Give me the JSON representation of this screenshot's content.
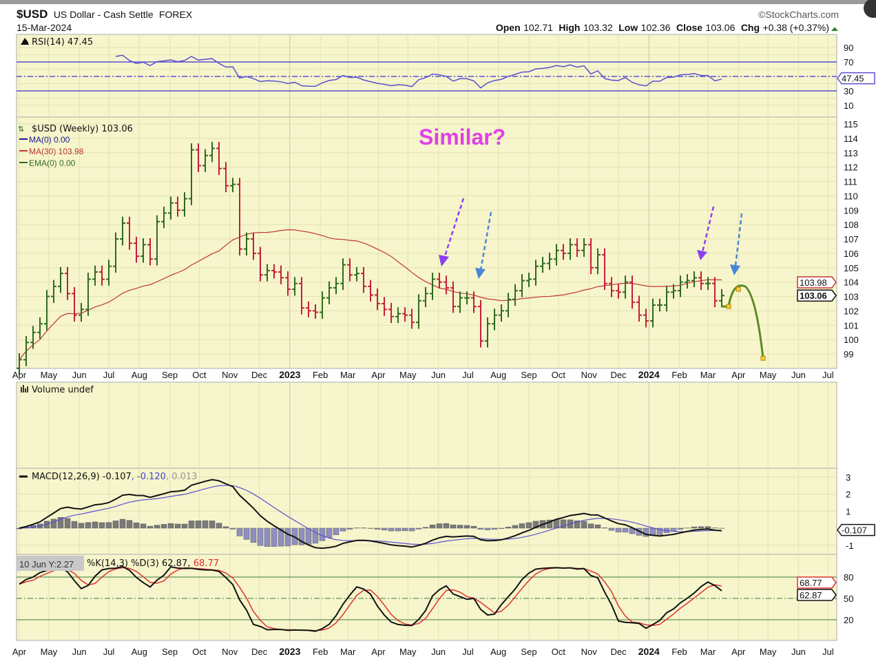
{
  "header": {
    "symbol": "$USD",
    "name": "US Dollar - Cash Settle",
    "exchange": "FOREX",
    "date": "15-Mar-2024",
    "brand": "©StockCharts.com",
    "open_label": "Open",
    "open": "102.71",
    "high_label": "High",
    "high": "103.32",
    "low_label": "Low",
    "low": "102.36",
    "close_label": "Close",
    "close": "103.06",
    "chg_label": "Chg",
    "chg": "+0.38 (+0.37%)"
  },
  "rsi": {
    "legend": "RSI(14) 47.45",
    "tag": "47.45",
    "ticks": [
      "90",
      "70",
      "30",
      "10"
    ]
  },
  "price": {
    "legend": "$USD (Weekly) 103.06",
    "ma0": "MA(0) 0.00",
    "ma30": "MA(30) 103.98",
    "ema0": "EMA(0) 0.00",
    "ma30_tag": "103.98",
    "close_tag": "103.06",
    "annotation": "Similar?",
    "ticks": [
      "115",
      "114",
      "113",
      "112",
      "111",
      "110",
      "109",
      "108",
      "107",
      "106",
      "105",
      "104",
      "103",
      "102",
      "101",
      "100",
      "99"
    ]
  },
  "volume": {
    "legend": "Volume undef"
  },
  "macd": {
    "legend_a": "MACD(12,26,9) -0.107",
    "legend_b": ", -0.120",
    "legend_c": ", 0.013",
    "tag": "-0.107",
    "ticks": [
      "3",
      "2",
      "1",
      "-1"
    ]
  },
  "stoch": {
    "crosshair": "10 Jun Y:2.27",
    "legend_a": "%K(14,3) %D(3) 62.87,",
    "legend_b": "68.77",
    "tag_k": "62.87",
    "tag_d": "68.77",
    "ticks": [
      "80",
      "50",
      "20"
    ]
  },
  "x_axis": [
    {
      "label": "Apr",
      "date": "2022-04-01"
    },
    {
      "label": "May",
      "date": "2022-05-01"
    },
    {
      "label": "Jun",
      "date": "2022-06-01"
    },
    {
      "label": "Jul",
      "date": "2022-07-01"
    },
    {
      "label": "Aug",
      "date": "2022-08-01"
    },
    {
      "label": "Sep",
      "date": "2022-09-01"
    },
    {
      "label": "Oct",
      "date": "2022-10-01"
    },
    {
      "label": "Nov",
      "date": "2022-11-01"
    },
    {
      "label": "Dec",
      "date": "2022-12-01"
    },
    {
      "label": "2023",
      "date": "2023-01-01",
      "bold": true
    },
    {
      "label": "Feb",
      "date": "2023-02-01"
    },
    {
      "label": "Mar",
      "date": "2023-03-01"
    },
    {
      "label": "Apr",
      "date": "2023-04-01"
    },
    {
      "label": "May",
      "date": "2023-05-01"
    },
    {
      "label": "Jun",
      "date": "2023-06-01"
    },
    {
      "label": "Jul",
      "date": "2023-07-01"
    },
    {
      "label": "Aug",
      "date": "2023-08-01"
    },
    {
      "label": "Sep",
      "date": "2023-09-01"
    },
    {
      "label": "Oct",
      "date": "2023-10-01"
    },
    {
      "label": "Nov",
      "date": "2023-11-01"
    },
    {
      "label": "Dec",
      "date": "2023-12-01"
    },
    {
      "label": "2024",
      "date": "2024-01-01",
      "bold": true
    },
    {
      "label": "Feb",
      "date": "2024-02-01"
    },
    {
      "label": "Mar",
      "date": "2024-03-01"
    },
    {
      "label": "Apr",
      "date": "2024-04-01"
    },
    {
      "label": "May",
      "date": "2024-05-01"
    },
    {
      "label": "Jun",
      "date": "2024-06-01"
    },
    {
      "label": "Jul",
      "date": "2024-07-01"
    }
  ],
  "colors": {
    "panel": "#f6f5cc",
    "up": "#2f6a1f",
    "down": "#c41f3a",
    "ma30": "#c03535",
    "rsi": "#5a4fd0",
    "macd": "#111111",
    "signal": "#5a4fd0",
    "hist_pos": "#7a7a7a",
    "hist_neg": "#8f8fc0",
    "stoch_k": "#111111",
    "stoch_d": "#e03030",
    "annotation": "#e040e8",
    "arrow_purple": "#8a3ff0",
    "arrow_blue": "#4a86d8",
    "projection": "#5a8a20"
  },
  "chart_data": {
    "type": "bar",
    "subtype": "weekly OHLC price bars with MA(30), RSI(14), MACD(12,26,9), Stochastic %K(14,3) %D(3)",
    "start_week": "2022-04-01",
    "interval": "weekly",
    "ylim": [
      99,
      115
    ],
    "close": [
      98.6,
      99.8,
      100.5,
      101.1,
      103.0,
      103.7,
      104.6,
      103.2,
      101.7,
      102.1,
      104.2,
      104.7,
      104.2,
      105.1,
      107.0,
      108.1,
      106.7,
      105.8,
      106.6,
      105.6,
      108.2,
      108.8,
      109.5,
      109.0,
      109.8,
      113.2,
      112.1,
      112.8,
      113.3,
      111.9,
      110.7,
      110.8,
      106.3,
      107.0,
      106.0,
      104.5,
      104.8,
      104.7,
      104.3,
      103.5,
      103.9,
      102.2,
      102.0,
      101.9,
      102.9,
      103.6,
      103.9,
      105.2,
      104.5,
      104.6,
      103.7,
      103.1,
      102.5,
      102.1,
      101.6,
      101.8,
      101.7,
      101.2,
      102.7,
      103.2,
      104.2,
      104.0,
      103.6,
      102.3,
      102.9,
      102.9,
      102.3,
      99.9,
      101.1,
      101.7,
      102.0,
      102.8,
      103.4,
      104.1,
      104.2,
      105.1,
      105.3,
      105.6,
      106.2,
      106.0,
      106.6,
      106.2,
      106.6,
      105.0,
      105.9,
      103.9,
      103.4,
      103.3,
      104.0,
      102.6,
      101.7,
      101.3,
      102.4,
      102.4,
      103.3,
      103.4,
      104.0,
      104.1,
      104.3,
      103.9,
      103.9,
      102.7,
      103.06
    ],
    "projection": [
      {
        "date": "2024-03-15",
        "value": 103.06
      },
      {
        "date": "2024-03-22",
        "value": 102.3
      },
      {
        "date": "2024-04-01",
        "value": 103.5
      },
      {
        "date": "2024-04-26",
        "value": 98.7
      }
    ],
    "rsi_levels": [
      70,
      50,
      30
    ],
    "stoch_levels": [
      80,
      50,
      20
    ]
  }
}
